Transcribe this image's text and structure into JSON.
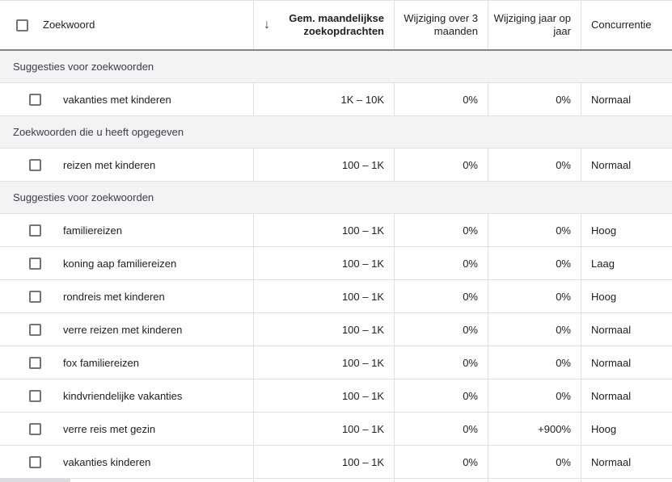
{
  "header": {
    "columns": {
      "keyword": "Zoekwoord",
      "avg_monthly_searches": "Gem. maandelijkse zoekopdrachten",
      "three_month_change": "Wijziging over 3 maanden",
      "yoy_change": "Wijziging jaar op jaar",
      "competition": "Concurrentie"
    },
    "sort_glyph": "↓",
    "sort_icon": "arrow-down-icon"
  },
  "rows": [
    {
      "type": "section",
      "label": "Suggesties voor zoekwoorden"
    },
    {
      "type": "keyword",
      "checked": false,
      "keyword": "vakanties met kinderen",
      "avg_monthly_searches": "1K – 10K",
      "three_month_change": "0%",
      "yoy_change": "0%",
      "competition": "Normaal"
    },
    {
      "type": "section",
      "label": "Zoekwoorden die u heeft opgegeven"
    },
    {
      "type": "keyword",
      "checked": false,
      "keyword": "reizen met kinderen",
      "avg_monthly_searches": "100 – 1K",
      "three_month_change": "0%",
      "yoy_change": "0%",
      "competition": "Normaal"
    },
    {
      "type": "section",
      "label": "Suggesties voor zoekwoorden"
    },
    {
      "type": "keyword",
      "checked": false,
      "keyword": "familiereizen",
      "avg_monthly_searches": "100 – 1K",
      "three_month_change": "0%",
      "yoy_change": "0%",
      "competition": "Hoog"
    },
    {
      "type": "keyword",
      "checked": false,
      "keyword": "koning aap familiereizen",
      "avg_monthly_searches": "100 – 1K",
      "three_month_change": "0%",
      "yoy_change": "0%",
      "competition": "Laag"
    },
    {
      "type": "keyword",
      "checked": false,
      "keyword": "rondreis met kinderen",
      "avg_monthly_searches": "100 – 1K",
      "three_month_change": "0%",
      "yoy_change": "0%",
      "competition": "Hoog"
    },
    {
      "type": "keyword",
      "checked": false,
      "keyword": "verre reizen met kinderen",
      "avg_monthly_searches": "100 – 1K",
      "three_month_change": "0%",
      "yoy_change": "0%",
      "competition": "Normaal"
    },
    {
      "type": "keyword",
      "checked": false,
      "keyword": "fox familiereizen",
      "avg_monthly_searches": "100 – 1K",
      "three_month_change": "0%",
      "yoy_change": "0%",
      "competition": "Normaal"
    },
    {
      "type": "keyword",
      "checked": false,
      "keyword": "kindvriendelijke vakanties",
      "avg_monthly_searches": "100 – 1K",
      "three_month_change": "0%",
      "yoy_change": "0%",
      "competition": "Normaal"
    },
    {
      "type": "keyword",
      "checked": false,
      "keyword": "verre reis met gezin",
      "avg_monthly_searches": "100 – 1K",
      "three_month_change": "0%",
      "yoy_change": "+900%",
      "competition": "Hoog"
    },
    {
      "type": "keyword",
      "checked": false,
      "keyword": "vakanties kinderen",
      "avg_monthly_searches": "100 – 1K",
      "three_month_change": "0%",
      "yoy_change": "0%",
      "competition": "Normaal"
    }
  ],
  "colors": {
    "text_primary": "#202124",
    "text_secondary": "#3c4043",
    "header_border": "#80868b",
    "row_border": "#e0e0e0",
    "section_bg": "#f1f3f4",
    "checkbox_border": "#70757a",
    "scrollbar_thumb": "#dadce0"
  }
}
